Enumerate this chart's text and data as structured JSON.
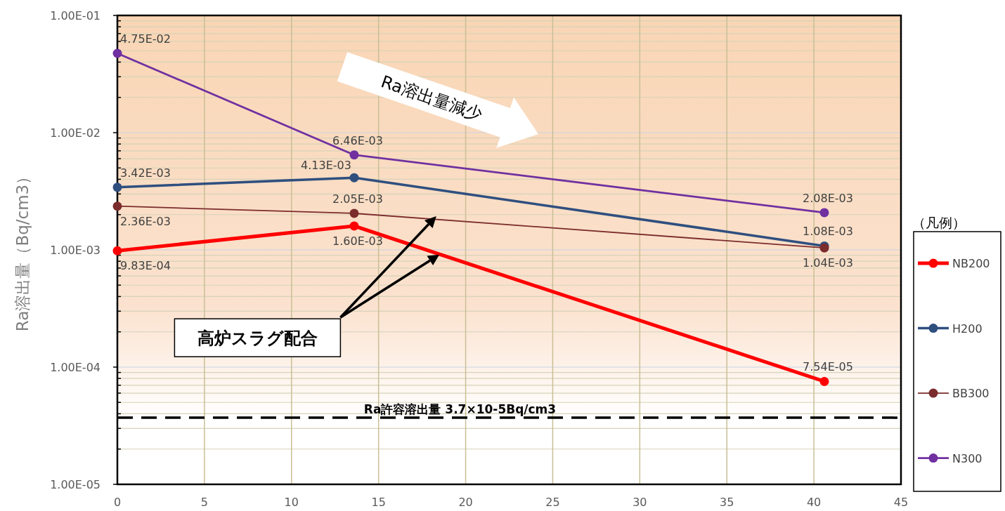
{
  "chart_data": {
    "type": "line",
    "xlabel": null,
    "ylabel": "Ra溶出量（Bq/cm3）",
    "legend_title": "（凡例）",
    "x": [
      0,
      13.6,
      40.6
    ],
    "series": [
      {
        "name": "NB200",
        "color": "#ff0000",
        "values": [
          0.000983,
          0.0016,
          7.54e-05
        ],
        "value_labels": [
          "9.83E-04",
          "1.60E-03",
          "7.54E-05"
        ]
      },
      {
        "name": "H200",
        "color": "#2f4f7f",
        "values": [
          0.00342,
          0.00413,
          0.00108
        ],
        "value_labels": [
          "3.42E-03",
          "4.13E-03",
          "1.08E-03"
        ]
      },
      {
        "name": "BB300",
        "color": "#7b2c2c",
        "values": [
          0.00236,
          0.00205,
          0.00104
        ],
        "value_labels": [
          "2.36E-03",
          "2.05E-03",
          "1.04E-03"
        ]
      },
      {
        "name": "N300",
        "color": "#7030a0",
        "values": [
          0.0475,
          0.00646,
          0.00208
        ],
        "value_labels": [
          "4.75E-02",
          "6.46E-03",
          "2.08E-03"
        ]
      }
    ],
    "log": "y",
    "xlim": [
      0,
      45
    ],
    "xticks": [
      0,
      5,
      10,
      15,
      20,
      25,
      30,
      35,
      40,
      45
    ],
    "ylim": [
      1e-05,
      0.1
    ],
    "yticks": [
      {
        "value": 1e-05,
        "label": "1.00E-05"
      },
      {
        "value": 0.0001,
        "label": "1.00E-04"
      },
      {
        "value": 0.001,
        "label": "1.00E-03"
      },
      {
        "value": 0.01,
        "label": "1.00E-02"
      },
      {
        "value": 0.1,
        "label": "1.00E-01"
      }
    ],
    "ref_lines": [
      {
        "axis": "y",
        "value": 3.7e-05,
        "label": "Ra許容溶出量 3.7×10-5Bq/cm3",
        "color": "#000000",
        "line_style": "dashed"
      }
    ],
    "annotations": [
      "Ra溶出量減少",
      "高炉スラグ配合"
    ],
    "grid": true,
    "legend": "right",
    "marker": "circle",
    "line_style": "solid"
  }
}
